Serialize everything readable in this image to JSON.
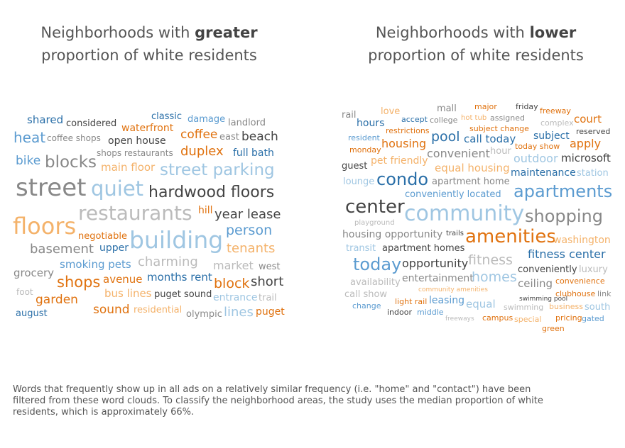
{
  "panels": [
    {
      "title": {
        "prefix": "Neighborhoods with",
        "emphasis": "greater",
        "line2": "proportion of white residents"
      },
      "words": [
        "shared",
        "considered",
        "classic",
        "damage",
        "landlord",
        "waterfront",
        "heat",
        "coffee shops",
        "open house",
        "coffee",
        "east",
        "beach",
        "shops restaurants",
        "duplex",
        "full bath",
        "bike",
        "blocks",
        "main floor",
        "street parking",
        "street",
        "quiet",
        "hardwood floors",
        "hill",
        "restaurants",
        "year lease",
        "floors",
        "person",
        "negotiable",
        "building",
        "upper",
        "basement",
        "tenants",
        "charming",
        "smoking pets",
        "market",
        "west",
        "grocery",
        "shops",
        "avenue",
        "months rent",
        "block",
        "short",
        "foot",
        "bus lines",
        "puget sound",
        "entrance",
        "trail",
        "garden",
        "august",
        "sound",
        "residential",
        "olympic",
        "lines",
        "puget"
      ]
    },
    {
      "title": {
        "prefix": "Neighborhoods with",
        "emphasis": "lower",
        "line2": "proportion of white residents"
      },
      "words": [
        "mall",
        "major",
        "friday",
        "rail",
        "love",
        "hot tub",
        "assigned",
        "freeway",
        "hours",
        "accept",
        "college",
        "court",
        "complex",
        "restrictions",
        "subject change",
        "reserved",
        "resident",
        "pool",
        "call today",
        "subject",
        "housing",
        "apply",
        "monday",
        "today show",
        "convenient",
        "hour",
        "pet friendly",
        "outdoor",
        "microsoft",
        "guest",
        "equal housing",
        "maintenance",
        "station",
        "lounge",
        "condo",
        "apartment home",
        "apartments",
        "conveniently located",
        "center",
        "community",
        "shopping",
        "playground",
        "housing opportunity",
        "trails",
        "amenities",
        "washington",
        "transit",
        "apartment homes",
        "fitness center",
        "today",
        "opportunity",
        "fitness",
        "conveniently",
        "luxury",
        "homes",
        "entertainment",
        "availability",
        "ceiling",
        "convenience",
        "community amenities",
        "call show",
        "clubhouse",
        "link",
        "swimming pool",
        "light rail",
        "leasing",
        "equal",
        "change",
        "swimming",
        "business",
        "south",
        "indoor",
        "middle",
        "freeways",
        "campus",
        "special",
        "pricing",
        "gated",
        "green"
      ]
    }
  ],
  "footnote": [
    "Words that frequently show up in all ads on a relatively similar frequency (i.e. \"home\" and \"contact\") have been",
    "filtered from these word clouds. To classify the neighborhood areas, the study uses the median proportion of white",
    "residents, which is approximately 66%."
  ]
}
